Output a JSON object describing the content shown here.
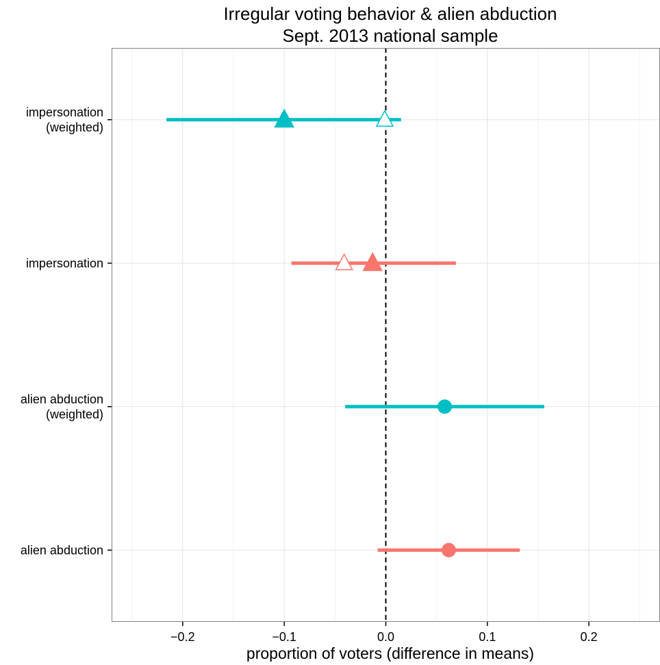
{
  "chart_data": {
    "type": "scatter",
    "title": "Irregular voting behavior & alien abduction",
    "subtitle": "Sept. 2013 national sample",
    "xlabel": "proportion of voters (difference in means)",
    "xlim": [
      -0.27,
      0.27
    ],
    "x_ticks": [
      -0.2,
      -0.1,
      0.0,
      0.1,
      0.2
    ],
    "x_tick_labels": [
      "−0.2",
      "−0.1",
      "0.0",
      "0.1",
      "0.2"
    ],
    "reference_line": {
      "x": 0.0,
      "style": "dashed",
      "color": "#000000"
    },
    "grid": true,
    "categories": [
      {
        "id": "impersonation-weighted",
        "lines": [
          "impersonation",
          "(weighted)"
        ]
      },
      {
        "id": "impersonation",
        "lines": [
          "impersonation"
        ]
      },
      {
        "id": "alien-abduction-weighted",
        "lines": [
          "alien abduction",
          "(weighted)"
        ]
      },
      {
        "id": "alien-abduction",
        "lines": [
          "alien abduction"
        ]
      }
    ],
    "rows": [
      {
        "category": "impersonation-weighted",
        "color": "#00BFC4",
        "ci_low": -0.216,
        "ci_high": 0.015,
        "points": [
          {
            "x": -0.1,
            "shape": "triangle",
            "filled": true
          },
          {
            "x": -0.001,
            "shape": "triangle",
            "filled": false
          }
        ]
      },
      {
        "category": "impersonation",
        "color": "#F8766D",
        "ci_low": -0.093,
        "ci_high": 0.069,
        "points": [
          {
            "x": -0.013,
            "shape": "triangle",
            "filled": true
          },
          {
            "x": -0.041,
            "shape": "triangle",
            "filled": false
          }
        ]
      },
      {
        "category": "alien-abduction-weighted",
        "color": "#00BFC4",
        "ci_low": -0.04,
        "ci_high": 0.156,
        "points": [
          {
            "x": 0.058,
            "shape": "circle",
            "filled": true
          }
        ]
      },
      {
        "category": "alien-abduction",
        "color": "#F8766D",
        "ci_low": -0.008,
        "ci_high": 0.132,
        "points": [
          {
            "x": 0.062,
            "shape": "circle",
            "filled": true
          }
        ]
      }
    ]
  }
}
